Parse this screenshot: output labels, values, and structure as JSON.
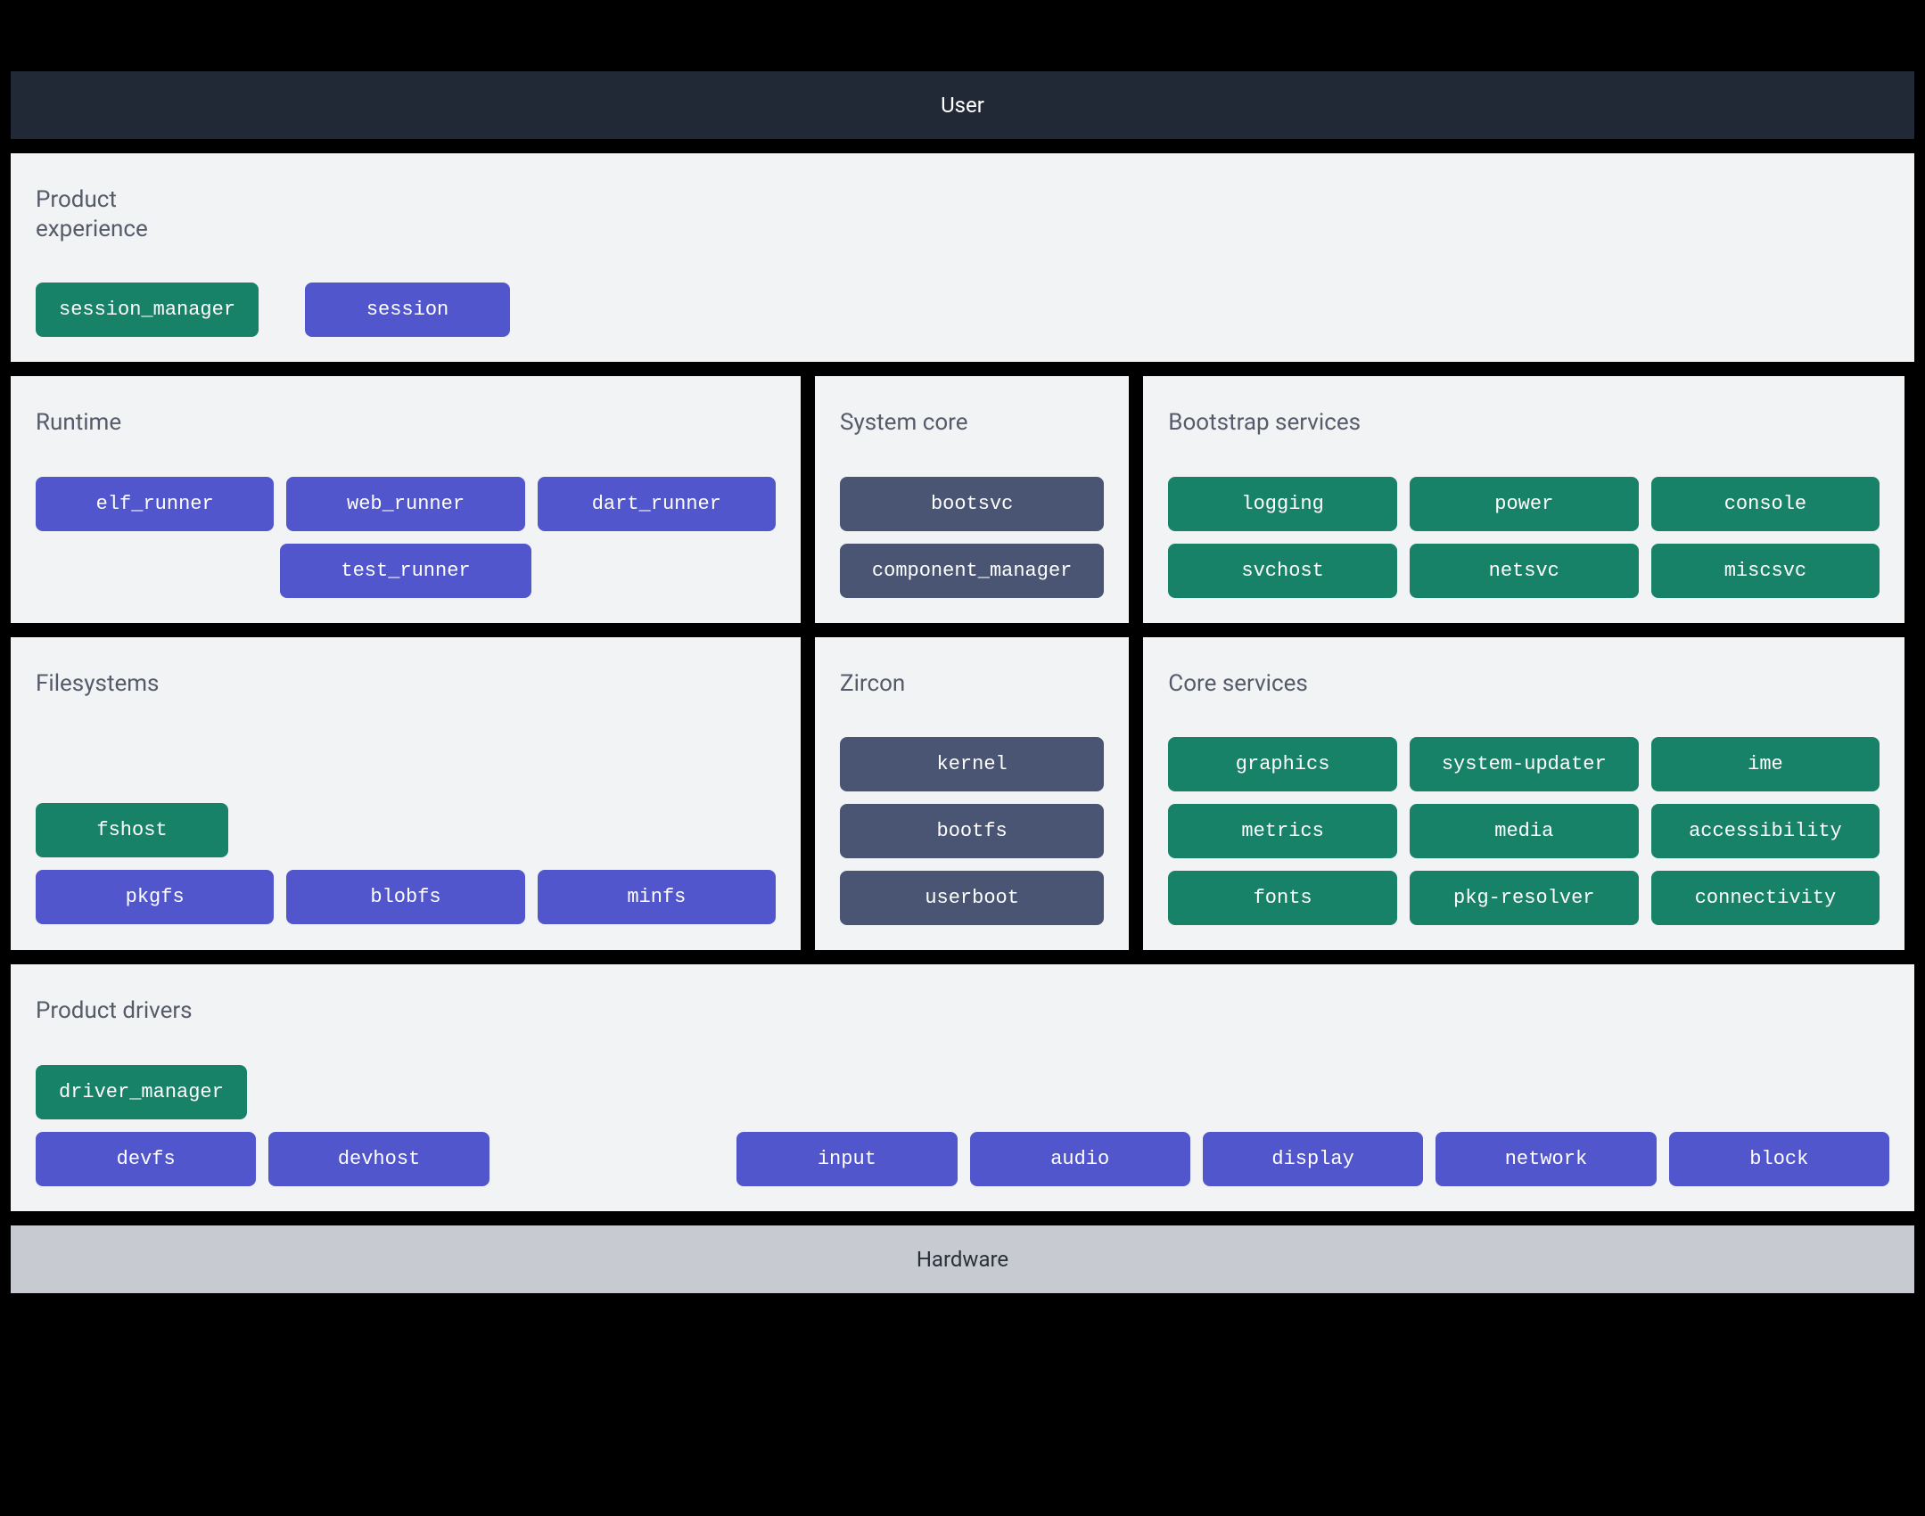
{
  "type": "architecture-layer-diagram",
  "colors": {
    "background": "#000000",
    "panel_bg": "#f2f3f5",
    "panel_title": "#565b69",
    "user_band_bg": "#212936",
    "user_band_text": "#ffffff",
    "hardware_band_bg": "#c7cbd1",
    "hardware_band_text": "#2a2f3a",
    "chip_green": "#188269",
    "chip_purple": "#5256cc",
    "chip_slate": "#4a5573",
    "chip_text": "#ffffff"
  },
  "typography": {
    "panel_title_fontsize": 26,
    "chip_fontsize": 22,
    "band_fontsize": 24,
    "chip_font_family": "monospace",
    "title_font_family": "sans-serif"
  },
  "shape": {
    "chip_border_radius": 8,
    "panel_padding": 32,
    "chip_padding_v": 18,
    "chip_padding_h": 26,
    "gap": 14
  },
  "bands": {
    "user": "User",
    "hardware": "Hardware"
  },
  "panels": {
    "product_experience": {
      "title": "Product\nexperience",
      "items": [
        {
          "label": "session_manager",
          "color": "green"
        },
        {
          "label": "session",
          "color": "purple"
        }
      ]
    },
    "runtime": {
      "title": "Runtime",
      "row1": [
        {
          "label": "elf_runner",
          "color": "purple"
        },
        {
          "label": "web_runner",
          "color": "purple"
        },
        {
          "label": "dart_runner",
          "color": "purple"
        }
      ],
      "row2": [
        {
          "label": "test_runner",
          "color": "purple"
        }
      ]
    },
    "system_core": {
      "title": "System core",
      "items": [
        {
          "label": "bootsvc",
          "color": "slate"
        },
        {
          "label": "component_manager",
          "color": "slate"
        }
      ]
    },
    "bootstrap_services": {
      "title": "Bootstrap services",
      "items": [
        {
          "label": "logging",
          "color": "green"
        },
        {
          "label": "power",
          "color": "green"
        },
        {
          "label": "console",
          "color": "green"
        },
        {
          "label": "svchost",
          "color": "green"
        },
        {
          "label": "netsvc",
          "color": "green"
        },
        {
          "label": "miscsvc",
          "color": "green"
        }
      ]
    },
    "filesystems": {
      "title": "Filesystems",
      "top": {
        "label": "fshost",
        "color": "green"
      },
      "row": [
        {
          "label": "pkgfs",
          "color": "purple"
        },
        {
          "label": "blobfs",
          "color": "purple"
        },
        {
          "label": "minfs",
          "color": "purple"
        }
      ]
    },
    "zircon": {
      "title": "Zircon",
      "items": [
        {
          "label": "kernel",
          "color": "slate"
        },
        {
          "label": "bootfs",
          "color": "slate"
        },
        {
          "label": "userboot",
          "color": "slate"
        }
      ]
    },
    "core_services": {
      "title": "Core services",
      "items": [
        {
          "label": "graphics",
          "color": "green"
        },
        {
          "label": "system-updater",
          "color": "green"
        },
        {
          "label": "ime",
          "color": "green"
        },
        {
          "label": "metrics",
          "color": "green"
        },
        {
          "label": "media",
          "color": "green"
        },
        {
          "label": "accessibility",
          "color": "green"
        },
        {
          "label": "fonts",
          "color": "green"
        },
        {
          "label": "pkg-resolver",
          "color": "green"
        },
        {
          "label": "connectivity",
          "color": "green"
        }
      ]
    },
    "product_drivers": {
      "title": "Product drivers",
      "top": {
        "label": "driver_manager",
        "color": "green"
      },
      "left": [
        {
          "label": "devfs",
          "color": "purple"
        },
        {
          "label": "devhost",
          "color": "purple"
        }
      ],
      "right": [
        {
          "label": "input",
          "color": "purple"
        },
        {
          "label": "audio",
          "color": "purple"
        },
        {
          "label": "display",
          "color": "purple"
        },
        {
          "label": "network",
          "color": "purple"
        },
        {
          "label": "block",
          "color": "purple"
        }
      ]
    }
  }
}
